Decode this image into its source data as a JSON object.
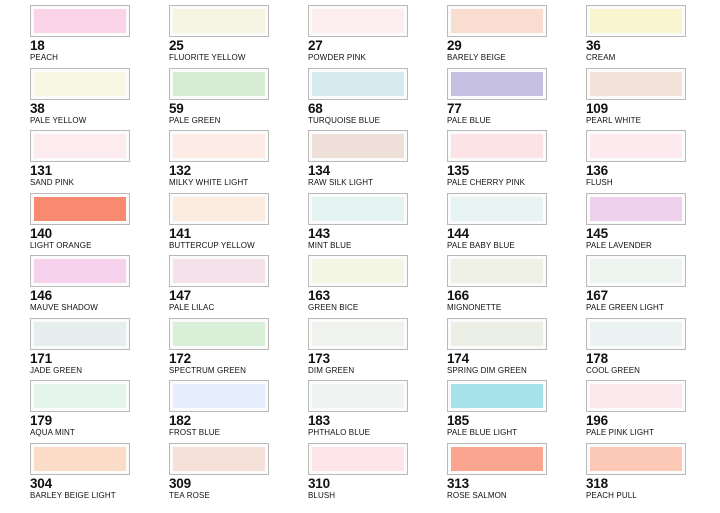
{
  "swatches": [
    {
      "number": "18",
      "name": "PEACH",
      "color": "#fbd3e6"
    },
    {
      "number": "25",
      "name": "FLUORITE YELLOW",
      "color": "#f6f4e2"
    },
    {
      "number": "27",
      "name": "POWDER PINK",
      "color": "#fdeeef"
    },
    {
      "number": "29",
      "name": "BARELY BEIGE",
      "color": "#f9ddd0"
    },
    {
      "number": "36",
      "name": "CREAM",
      "color": "#f8f5cf"
    },
    {
      "number": "38",
      "name": "PALE YELLOW",
      "color": "#f7f8e3"
    },
    {
      "number": "59",
      "name": "PALE GREEN",
      "color": "#d7ecd5"
    },
    {
      "number": "68",
      "name": "TURQUOISE BLUE",
      "color": "#d5ebef"
    },
    {
      "number": "77",
      "name": "PALE BLUE",
      "color": "#c6c0e3"
    },
    {
      "number": "109",
      "name": "PEARL WHITE",
      "color": "#f3e3da"
    },
    {
      "number": "131",
      "name": "SAND PINK",
      "color": "#fdecef"
    },
    {
      "number": "132",
      "name": "MILKY WHITE LIGHT",
      "color": "#fcece5"
    },
    {
      "number": "134",
      "name": "RAW SILK LIGHT",
      "color": "#eedfd8"
    },
    {
      "number": "135",
      "name": "PALE CHERRY PINK",
      "color": "#fbe3e6"
    },
    {
      "number": "136",
      "name": "FLUSH",
      "color": "#fdeaee"
    },
    {
      "number": "140",
      "name": "LIGHT ORANGE",
      "color": "#f98a72"
    },
    {
      "number": "141",
      "name": "BUTTERCUP YELLOW",
      "color": "#fbece2"
    },
    {
      "number": "143",
      "name": "MINT BLUE",
      "color": "#e4f2f1"
    },
    {
      "number": "144",
      "name": "PALE BABY BLUE",
      "color": "#e8f3f4"
    },
    {
      "number": "145",
      "name": "PALE LAVENDER",
      "color": "#edd0e9"
    },
    {
      "number": "146",
      "name": "MAUVE SHADOW",
      "color": "#f6d2ec"
    },
    {
      "number": "147",
      "name": "PALE LILAC",
      "color": "#f5e1ea"
    },
    {
      "number": "163",
      "name": "GREEN BICE",
      "color": "#f3f6e4"
    },
    {
      "number": "166",
      "name": "MIGNONETTE",
      "color": "#eff1e7"
    },
    {
      "number": "167",
      "name": "PALE GREEN LIGHT",
      "color": "#eef4ef"
    },
    {
      "number": "171",
      "name": "JADE GREEN",
      "color": "#e7efee"
    },
    {
      "number": "172",
      "name": "SPECTRUM GREEN",
      "color": "#d9efd7"
    },
    {
      "number": "173",
      "name": "DIM GREEN",
      "color": "#eff2ed"
    },
    {
      "number": "174",
      "name": "SPRING DIM GREEN",
      "color": "#ecefe6"
    },
    {
      "number": "178",
      "name": "COOL GREEN",
      "color": "#eaf3f1"
    },
    {
      "number": "179",
      "name": "AQUA MINT",
      "color": "#e4f3ec"
    },
    {
      "number": "182",
      "name": "FROST BLUE",
      "color": "#e6eefb"
    },
    {
      "number": "183",
      "name": "PHTHALO BLUE",
      "color": "#eff3f2"
    },
    {
      "number": "185",
      "name": "PALE BLUE LIGHT",
      "color": "#a5e2e9"
    },
    {
      "number": "196",
      "name": "PALE PINK LIGHT",
      "color": "#fbe8ed"
    },
    {
      "number": "304",
      "name": "BARLEY BEIGE LIGHT",
      "color": "#fbdcc8"
    },
    {
      "number": "309",
      "name": "TEA ROSE",
      "color": "#f5e1d9"
    },
    {
      "number": "310",
      "name": "BLUSH",
      "color": "#fde5ea"
    },
    {
      "number": "313",
      "name": "ROSE SALMON",
      "color": "#f9a58f"
    },
    {
      "number": "318",
      "name": "PEACH PULL",
      "color": "#fbc9b6"
    }
  ]
}
